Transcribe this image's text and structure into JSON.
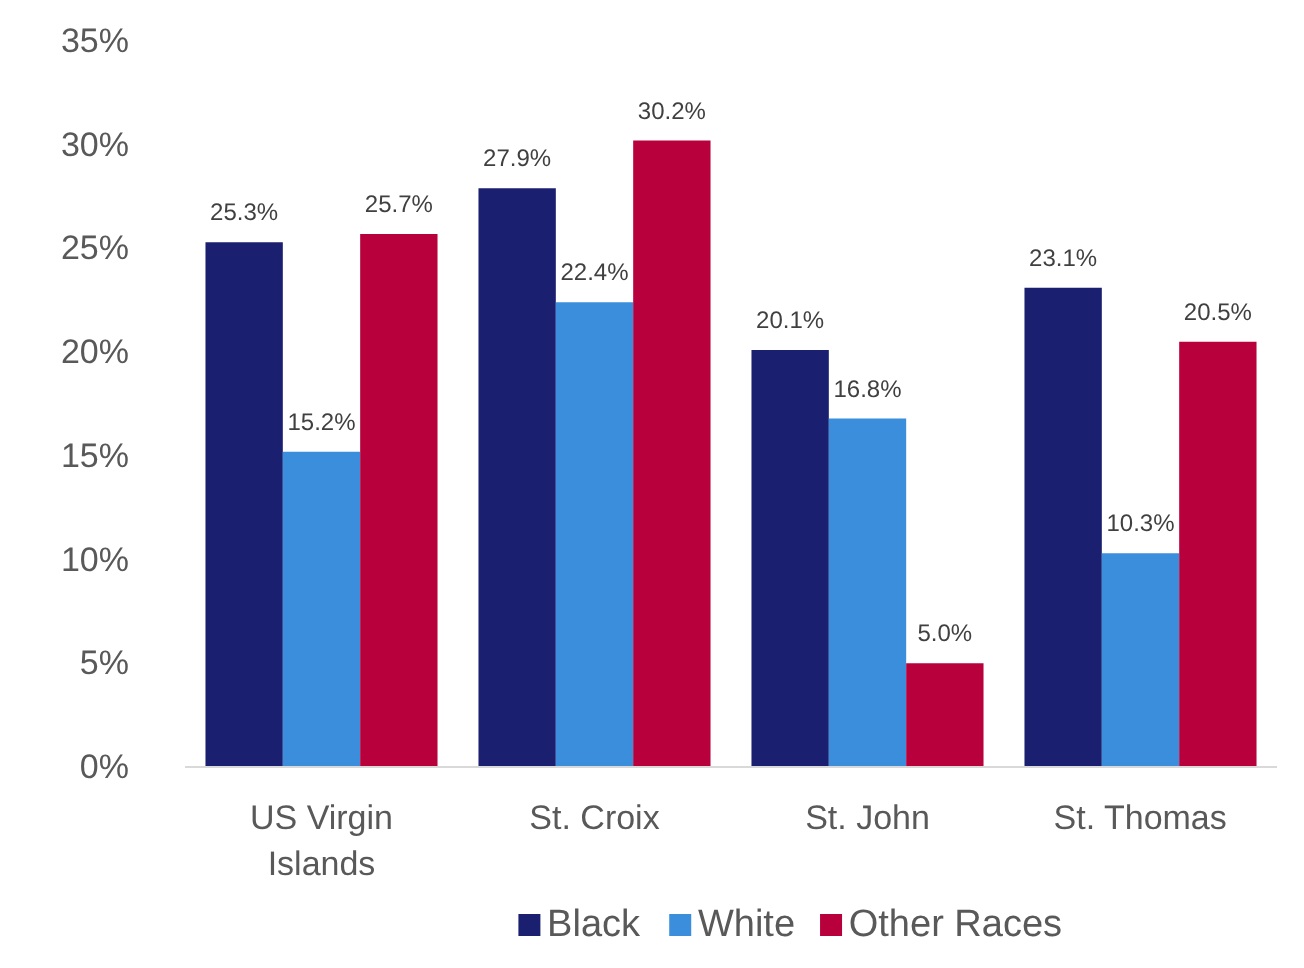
{
  "chart_data": {
    "type": "bar",
    "categories": [
      "US Virgin Islands",
      "St. Croix",
      "St. John",
      "St. Thomas"
    ],
    "series": [
      {
        "name": "Black",
        "color": "#1b1f70",
        "values": [
          25.3,
          27.9,
          20.1,
          23.1
        ],
        "value_labels": [
          "25.3%",
          "27.9%",
          "20.1%",
          "23.1%"
        ]
      },
      {
        "name": "White",
        "color": "#3a8edb",
        "values": [
          15.2,
          22.4,
          16.8,
          10.3
        ],
        "value_labels": [
          "15.2%",
          "22.4%",
          "16.8%",
          "10.3%"
        ]
      },
      {
        "name": "Other Races",
        "color": "#b8003c",
        "values": [
          25.7,
          30.2,
          5.0,
          20.5
        ],
        "value_labels": [
          "25.7%",
          "30.2%",
          "5.0%",
          "20.5%"
        ]
      }
    ],
    "ylim": [
      0,
      35
    ],
    "yticks": [
      {
        "value": 0,
        "label": "0%"
      },
      {
        "value": 5,
        "label": "5%"
      },
      {
        "value": 10,
        "label": "10%"
      },
      {
        "value": 15,
        "label": "15%"
      },
      {
        "value": 20,
        "label": "20%"
      },
      {
        "value": 25,
        "label": "25%"
      },
      {
        "value": 30,
        "label": "30%"
      },
      {
        "value": 35,
        "label": "35%"
      }
    ],
    "grid": false,
    "legend": "bottom"
  }
}
